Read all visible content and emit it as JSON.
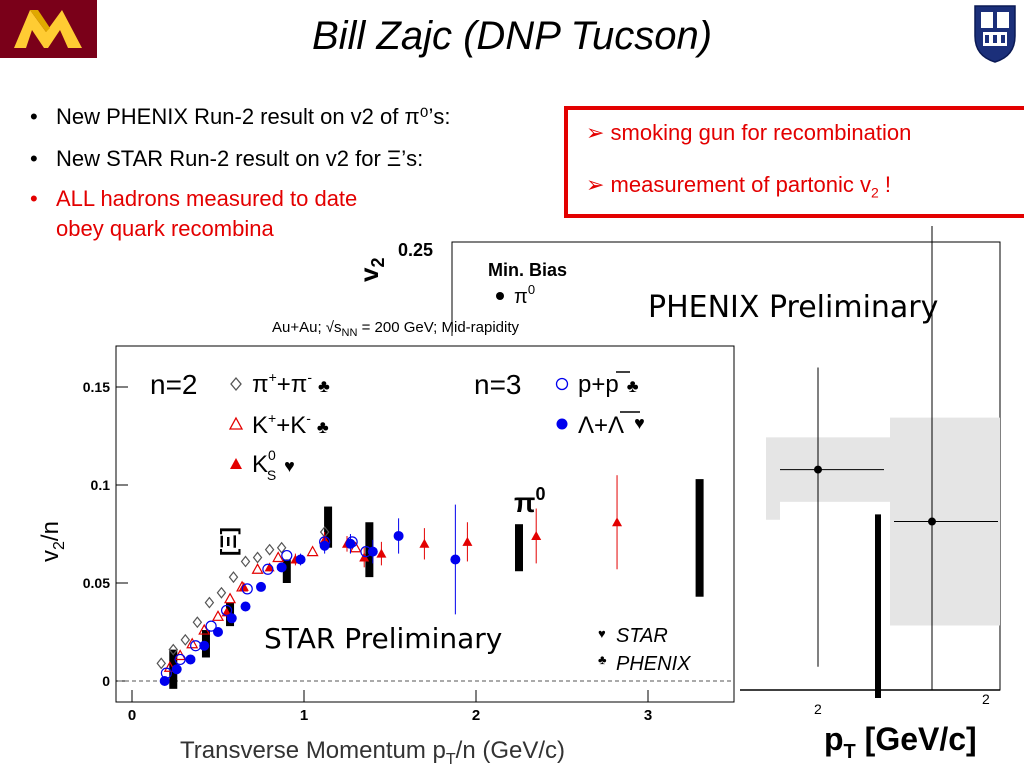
{
  "slide": {
    "title": "Bill Zajc (DNP Tucson)",
    "logo_left": "university-m-logo",
    "logo_right": "university-seal-logo",
    "bullets": [
      {
        "dot": "•",
        "text": "New PHENIX Run-2  result on v2 of π⁰’s:",
        "color": "#000000"
      },
      {
        "dot": "•",
        "text": "New STAR Run-2 result on v2 for Ξ’s:",
        "color": "#000000"
      },
      {
        "dot": "•",
        "text": "ALL hadrons measured to date",
        "text2": "obey quark recombina",
        "color": "#e30000"
      }
    ],
    "callout": {
      "line1": "➢ smoking gun for recombination",
      "line2": "➢ measurement of partonic v",
      "line2_sub": "2",
      "line2_end": " !",
      "border_color": "#e30000"
    }
  },
  "chart_data": [
    {
      "type": "scatter",
      "panel": "phenix",
      "title": "PHENIX Preliminary",
      "ylabel_main": "v",
      "ylabel_sub": "2",
      "ytick_visible": "0.25",
      "legend_title": "Min. Bias",
      "legend_entry": "π",
      "legend_entry_sup": "0",
      "xlabel_main": "p",
      "xlabel_sub": "T",
      "xlabel_end": " [GeV/c]",
      "xlim": [
        0,
        4.2
      ],
      "ylim": [
        0,
        0.25
      ],
      "points": [
        {
          "x": 1.6,
          "y": 0.123,
          "yerr_low": 0.11,
          "yerr_high": 0.18,
          "xerr": 0.65
        },
        {
          "x": 2.65,
          "y": 0.094,
          "yerr_low": 0.11,
          "yerr_high": 0.3,
          "xerr": 0.65
        }
      ],
      "systematic_bars": [
        {
          "x": 2.2,
          "ylow": 0.0,
          "yhigh": 0.098
        }
      ],
      "x_tick_partial": [
        "2",
        "2"
      ]
    },
    {
      "type": "scatter",
      "panel": "star",
      "header": "Au+Au; √s",
      "header_sub": "NN",
      "header_end": " = 200 GeV; Mid-rapidity",
      "xlabel": "Transverse Momentum p",
      "xlabel_sub": "T",
      "xlabel_end": "/n (GeV/c)",
      "ylabel": "v",
      "ylabel_sub": "2",
      "ylabel_end": "/n",
      "xlim": [
        0,
        3.5
      ],
      "ylim": [
        -0.005,
        0.17
      ],
      "xticks": [
        "0",
        "1",
        "2",
        "3"
      ],
      "yticks": [
        "0",
        "0.05",
        "0.1",
        "0.15"
      ],
      "yticks_values": [
        0,
        0.05,
        0.1,
        0.15
      ],
      "xticks_values": [
        0,
        1,
        2,
        3
      ],
      "n2_label": "n=2",
      "n3_label": "n=3",
      "legend": [
        {
          "name": "π⁺+π⁻ ♣",
          "marker": "diamond-open",
          "color": "#555555"
        },
        {
          "name": "K⁺+K⁻ ♣",
          "marker": "triangle-open",
          "color": "#e30000"
        },
        {
          "name": "K⁰S ♥",
          "marker": "triangle-filled",
          "color": "#e30000"
        },
        {
          "name": "p+p̄ ♣",
          "marker": "circle-open",
          "color": "#0000ee"
        },
        {
          "name": "Λ+Λ̄ ♥",
          "marker": "circle-filled",
          "color": "#0000ee"
        }
      ],
      "legend_parts": {
        "pi": "π",
        "pi_sup": "+",
        "pi_mid": "+π",
        "pi_sup2": "-",
        "pi_suit": "♣",
        "k": "K",
        "k_sup": "+",
        "k_mid": "+K",
        "k_sup2": "-",
        "k_suit": "♣",
        "ks": "K",
        "ks_sup": "0",
        "ks_sub": "S",
        "ks_suit": "♥",
        "p": "p+p",
        "p_suit": "♣",
        "lam": "Λ+Λ",
        "lam_suit": "♥"
      },
      "xi_label": "[Ξ]",
      "pi0_label": "π",
      "pi0_sup": "0",
      "star_preliminary": "STAR Preliminary",
      "source_legend": [
        {
          "symbol": "♥",
          "label": "STAR"
        },
        {
          "symbol": "♣",
          "label": "PHENIX"
        }
      ],
      "series": [
        {
          "name": "pi",
          "marker": "diamond-open",
          "color": "#555555",
          "x": [
            0.17,
            0.24,
            0.31,
            0.38,
            0.45,
            0.52,
            0.59,
            0.66,
            0.73,
            0.8,
            0.87,
            1.12
          ],
          "y": [
            0.009,
            0.016,
            0.021,
            0.03,
            0.04,
            0.045,
            0.053,
            0.061,
            0.063,
            0.067,
            0.068,
            0.076
          ]
        },
        {
          "name": "kaon",
          "marker": "triangle-open",
          "color": "#e30000",
          "x": [
            0.22,
            0.28,
            0.35,
            0.42,
            0.5,
            0.57,
            0.64,
            0.73,
            0.85,
            1.05,
            1.3
          ],
          "y": [
            0.007,
            0.013,
            0.019,
            0.026,
            0.033,
            0.042,
            0.048,
            0.057,
            0.063,
            0.066,
            0.068
          ]
        },
        {
          "name": "k0s",
          "marker": "triangle-filled",
          "color": "#e30000",
          "x": [
            0.55,
            0.65,
            0.8,
            0.95,
            1.12,
            1.25,
            1.35,
            1.45,
            1.7,
            1.95,
            2.35,
            2.82
          ],
          "y": [
            0.035,
            0.048,
            0.058,
            0.062,
            0.072,
            0.07,
            0.063,
            0.065,
            0.07,
            0.071,
            0.074,
            0.081
          ],
          "yerr": [
            0.002,
            0.002,
            0.002,
            0.003,
            0.004,
            0.004,
            0.005,
            0.006,
            0.008,
            0.01,
            0.014,
            0.024
          ]
        },
        {
          "name": "proton",
          "marker": "circle-open",
          "color": "#0000ee",
          "x": [
            0.2,
            0.28,
            0.37,
            0.46,
            0.55,
            0.67,
            0.79,
            0.9,
            1.12,
            1.28,
            1.36
          ],
          "y": [
            0.004,
            0.011,
            0.018,
            0.028,
            0.036,
            0.047,
            0.057,
            0.064,
            0.071,
            0.071,
            0.066
          ]
        },
        {
          "name": "lambda",
          "marker": "circle-filled",
          "color": "#0000ee",
          "x": [
            0.19,
            0.26,
            0.34,
            0.42,
            0.5,
            0.58,
            0.66,
            0.75,
            0.87,
            0.98,
            1.12,
            1.27,
            1.4,
            1.55,
            1.88
          ],
          "y": [
            0.0,
            0.006,
            0.011,
            0.018,
            0.025,
            0.032,
            0.038,
            0.048,
            0.058,
            0.062,
            0.069,
            0.07,
            0.066,
            0.074,
            0.062
          ],
          "yerr": [
            0.001,
            0.001,
            0.001,
            0.001,
            0.001,
            0.002,
            0.002,
            0.002,
            0.002,
            0.003,
            0.004,
            0.005,
            0.006,
            0.009,
            0.028
          ]
        }
      ],
      "systematic_bars": [
        {
          "x": 0.24,
          "ylow": -0.004,
          "yhigh": 0.016
        },
        {
          "x": 0.43,
          "ylow": 0.012,
          "yhigh": 0.026
        },
        {
          "x": 0.57,
          "ylow": 0.028,
          "yhigh": 0.04
        },
        {
          "x": 0.9,
          "ylow": 0.05,
          "yhigh": 0.062
        },
        {
          "x": 1.14,
          "ylow": 0.068,
          "yhigh": 0.089
        },
        {
          "x": 1.38,
          "ylow": 0.053,
          "yhigh": 0.081
        },
        {
          "x": 2.25,
          "ylow": 0.056,
          "yhigh": 0.08
        },
        {
          "x": 3.3,
          "ylow": 0.043,
          "yhigh": 0.103
        }
      ]
    }
  ]
}
